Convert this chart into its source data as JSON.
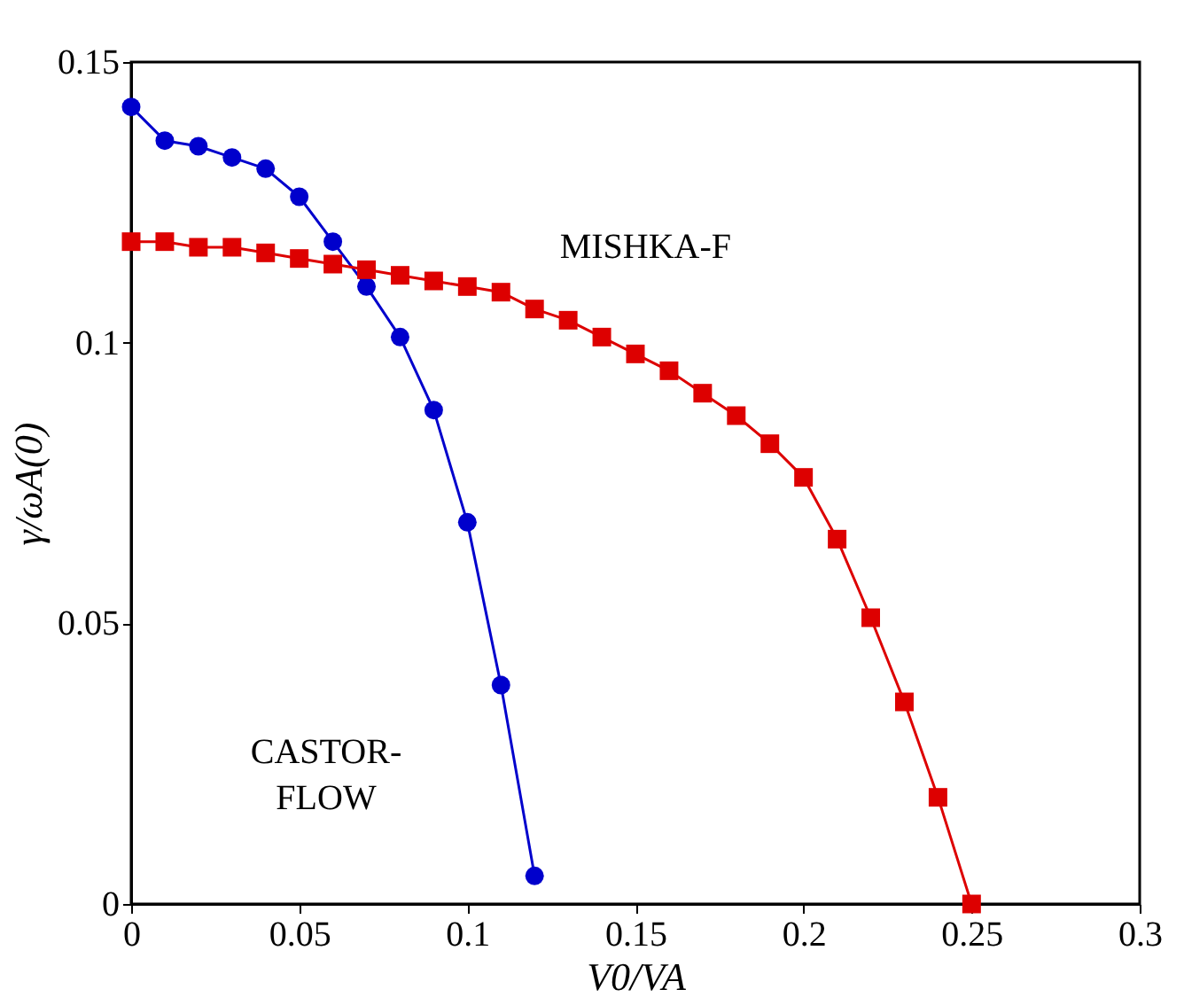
{
  "chart_data": {
    "type": "line",
    "xlabel": "V0/VA",
    "ylabel": "γ/ωA(0)",
    "xlim": [
      0,
      0.3
    ],
    "xticks": [
      0,
      0.05,
      0.1,
      0.15,
      0.2,
      0.25,
      0.3
    ],
    "ylim": [
      0,
      0.15
    ],
    "yticks": [
      0,
      0.05,
      0.1,
      0.15
    ],
    "grid": false,
    "series": [
      {
        "name": "CASTOR-\nFLOW",
        "color": "#0000cc",
        "marker": "circle",
        "x": [
          0,
          0.01,
          0.02,
          0.03,
          0.04,
          0.05,
          0.06,
          0.07,
          0.08,
          0.09,
          0.1,
          0.11,
          0.12
        ],
        "values": [
          0.142,
          0.136,
          0.135,
          0.133,
          0.131,
          0.126,
          0.118,
          0.11,
          0.101,
          0.088,
          0.068,
          0.039,
          0.005
        ]
      },
      {
        "name": "MISHKA-F",
        "color": "#dd0000",
        "marker": "square",
        "x": [
          0,
          0.01,
          0.02,
          0.03,
          0.04,
          0.05,
          0.06,
          0.07,
          0.08,
          0.09,
          0.1,
          0.11,
          0.12,
          0.13,
          0.14,
          0.15,
          0.16,
          0.17,
          0.18,
          0.19,
          0.2,
          0.21,
          0.22,
          0.23,
          0.24,
          0.25
        ],
        "values": [
          0.118,
          0.118,
          0.117,
          0.117,
          0.116,
          0.115,
          0.114,
          0.113,
          0.112,
          0.111,
          0.11,
          0.109,
          0.106,
          0.104,
          0.101,
          0.098,
          0.095,
          0.091,
          0.087,
          0.082,
          0.076,
          0.065,
          0.051,
          0.036,
          0.019,
          0.0
        ]
      }
    ]
  }
}
